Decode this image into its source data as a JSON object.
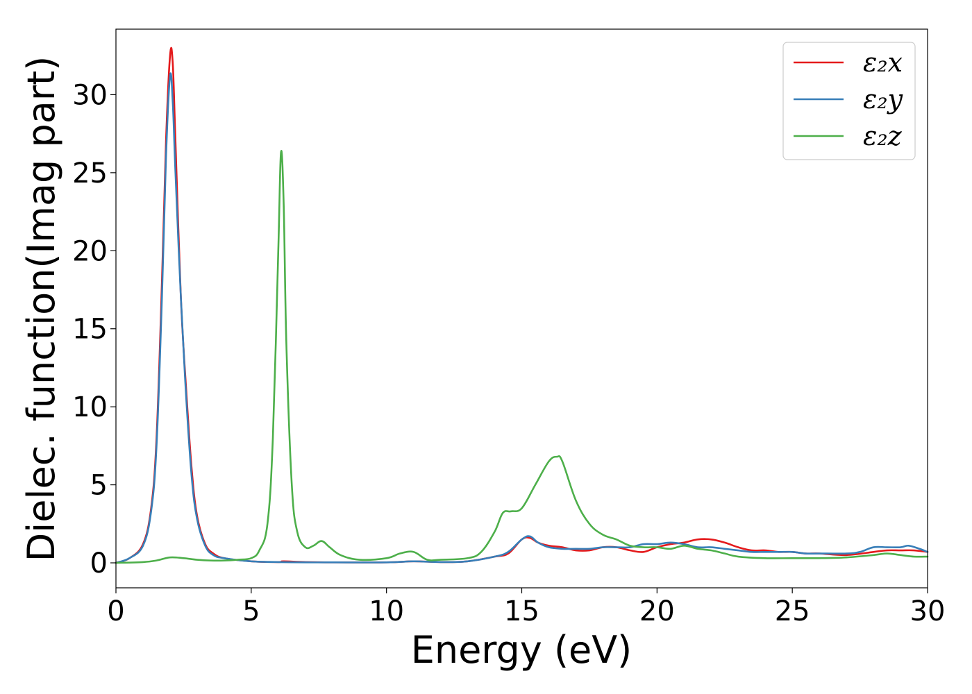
{
  "chart_data": {
    "type": "line",
    "title": "",
    "xlabel": "Energy (eV)",
    "ylabel": "Dielec. function(Imag part)",
    "xlim": [
      0,
      30
    ],
    "ylim": [
      -1.6,
      34.2
    ],
    "xticks": [
      0,
      5,
      10,
      15,
      20,
      25,
      30
    ],
    "yticks": [
      0,
      5,
      10,
      15,
      20,
      25,
      30
    ],
    "grid": false,
    "legend_position": "top-right",
    "series": [
      {
        "name": "ε₂x",
        "color": "#e41a1c",
        "x": [
          0,
          0.5,
          1.0,
          1.3,
          1.5,
          1.7,
          1.85,
          2.0,
          2.1,
          2.2,
          2.4,
          2.6,
          2.8,
          3.0,
          3.3,
          3.6,
          4.0,
          5,
          6,
          6.2,
          7,
          8,
          10,
          11,
          12,
          13,
          14,
          14.5,
          15,
          15.3,
          15.6,
          16,
          16.5,
          17,
          17.5,
          18,
          18.5,
          19,
          19.5,
          20,
          20.5,
          21,
          21.5,
          22,
          22.5,
          23,
          23.5,
          24,
          24.5,
          25,
          25.5,
          26,
          27,
          28,
          28.5,
          29,
          29.5,
          30
        ],
        "y": [
          0,
          0.3,
          1.2,
          3.5,
          8,
          18,
          27,
          32.5,
          32,
          27,
          17,
          11,
          6,
          3,
          1.2,
          0.6,
          0.3,
          0.1,
          0.05,
          0.1,
          0.05,
          0.03,
          0.03,
          0.1,
          0.05,
          0.1,
          0.4,
          0.6,
          1.5,
          1.6,
          1.3,
          1.1,
          1.0,
          0.8,
          0.8,
          1.0,
          1.0,
          0.8,
          0.7,
          1.0,
          1.2,
          1.3,
          1.5,
          1.5,
          1.3,
          1.0,
          0.8,
          0.8,
          0.7,
          0.7,
          0.6,
          0.6,
          0.5,
          0.7,
          0.8,
          0.8,
          0.8,
          0.7
        ]
      },
      {
        "name": "ε₂y",
        "color": "#377eb8",
        "x": [
          0,
          0.5,
          1.0,
          1.3,
          1.5,
          1.7,
          1.85,
          2.0,
          2.1,
          2.2,
          2.4,
          2.6,
          2.8,
          3.0,
          3.3,
          3.6,
          4.0,
          5,
          6,
          7,
          8,
          10,
          11,
          12,
          13,
          14,
          14.5,
          15,
          15.3,
          15.6,
          16,
          16.5,
          17,
          17.5,
          18,
          18.5,
          19,
          19.5,
          20,
          20.5,
          21,
          21.5,
          22,
          22.5,
          23,
          23.5,
          24,
          24.5,
          25,
          25.5,
          26,
          27,
          27.5,
          28,
          28.5,
          29,
          29.3,
          29.7,
          30
        ],
        "y": [
          0,
          0.3,
          1.1,
          3.3,
          7.5,
          17,
          26,
          31.2,
          29.5,
          25,
          17,
          10.5,
          5.5,
          2.8,
          1.1,
          0.5,
          0.3,
          0.1,
          0.05,
          0.03,
          0.03,
          0.03,
          0.1,
          0.05,
          0.1,
          0.4,
          0.7,
          1.5,
          1.7,
          1.3,
          1.0,
          0.9,
          0.9,
          0.9,
          1.0,
          1.0,
          1.0,
          1.2,
          1.2,
          1.3,
          1.2,
          1.0,
          1.0,
          0.9,
          0.8,
          0.7,
          0.7,
          0.7,
          0.7,
          0.6,
          0.6,
          0.6,
          0.7,
          1.0,
          1.0,
          1.0,
          1.1,
          0.9,
          0.7
        ]
      },
      {
        "name": "ε₂z",
        "color": "#4daf4a",
        "x": [
          0,
          1.0,
          1.5,
          2.0,
          2.5,
          3.0,
          3.5,
          4.0,
          4.5,
          5.0,
          5.3,
          5.6,
          5.8,
          6.0,
          6.1,
          6.2,
          6.3,
          6.5,
          6.7,
          7.0,
          7.3,
          7.6,
          7.9,
          8.3,
          9,
          10,
          10.5,
          11,
          11.5,
          12,
          13,
          13.5,
          14,
          14.3,
          14.6,
          15,
          15.5,
          16,
          16.3,
          16.5,
          17,
          17.5,
          18,
          18.5,
          19,
          19.5,
          20,
          20.5,
          21,
          21.5,
          22,
          22.5,
          23,
          24,
          25,
          26,
          27,
          28,
          28.5,
          29,
          29.5,
          30
        ],
        "y": [
          0,
          0.05,
          0.15,
          0.35,
          0.3,
          0.2,
          0.15,
          0.15,
          0.2,
          0.3,
          0.8,
          2.5,
          8,
          20,
          26.3,
          23,
          14,
          5,
          2,
          1.0,
          1.1,
          1.4,
          1.0,
          0.5,
          0.2,
          0.3,
          0.6,
          0.7,
          0.2,
          0.2,
          0.3,
          0.7,
          2.0,
          3.2,
          3.3,
          3.5,
          5,
          6.5,
          6.8,
          6.5,
          4,
          2.5,
          1.8,
          1.5,
          1.1,
          1.0,
          1.0,
          0.9,
          1.1,
          0.9,
          0.8,
          0.6,
          0.4,
          0.3,
          0.3,
          0.3,
          0.35,
          0.5,
          0.6,
          0.5,
          0.4,
          0.4
        ]
      }
    ]
  }
}
